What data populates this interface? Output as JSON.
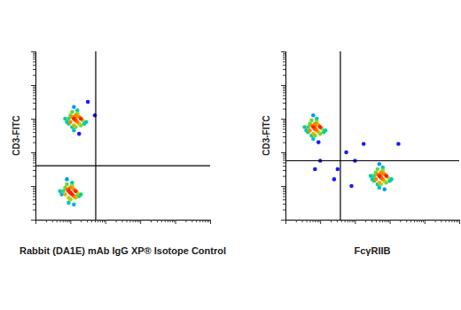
{
  "chart_data": [
    {
      "type": "scatter",
      "x_label": "Rabbit (DA1E) mAb IgG XP® Isotope Control",
      "y_label": "CD3-FITC",
      "xlim": [
        0,
        100
      ],
      "ylim": [
        0,
        100
      ],
      "xticks": [
        0,
        6,
        9.5,
        12,
        14,
        15.6,
        16.9,
        18.1,
        19.1,
        20,
        26,
        29.5,
        32,
        34,
        35.6,
        36.9,
        38.1,
        39.1,
        40,
        46,
        49.5,
        52,
        54,
        55.6,
        56.9,
        58.1,
        59.1,
        60,
        66,
        69.5,
        72,
        74,
        75.6,
        76.9,
        78.1,
        79.1,
        80,
        86,
        89.5,
        92,
        94,
        95.6,
        96.9,
        98.1,
        99.1,
        100
      ],
      "yticks": [
        0,
        6,
        9.5,
        12,
        14,
        15.6,
        16.9,
        18.1,
        19.1,
        20,
        26,
        29.5,
        32,
        34,
        35.6,
        36.9,
        38.1,
        39.1,
        40,
        46,
        49.5,
        52,
        54,
        55.6,
        56.9,
        58.1,
        59.1,
        60,
        66,
        69.5,
        72,
        74,
        75.6,
        76.9,
        78.1,
        79.1,
        80,
        86,
        89.5,
        92,
        94,
        95.6,
        96.9,
        98.1,
        99.1,
        100
      ],
      "tick_labels": false,
      "quadrant": {
        "x": 34.5,
        "y": 32
      },
      "series": [
        {
          "color": "#1a1aff",
          "x": [
            23,
            22,
            24,
            21,
            25,
            23,
            20,
            26,
            22,
            24,
            19,
            27,
            23,
            21,
            25,
            18,
            28,
            22,
            24,
            20,
            26,
            23,
            17,
            29,
            22,
            25,
            21,
            24,
            23,
            19,
            30,
            34,
            20,
            19,
            21,
            18,
            22,
            20,
            17,
            23,
            19,
            21,
            16,
            24,
            20,
            18,
            22,
            15,
            25,
            19,
            21,
            17,
            23,
            20,
            14,
            26,
            18,
            22,
            20,
            21,
            19,
            24
          ],
          "y": [
            59,
            60,
            58,
            61,
            57,
            62,
            58,
            60,
            56,
            63,
            60,
            59,
            55,
            64,
            61,
            58,
            57,
            53,
            65,
            62,
            56,
            59,
            60,
            58,
            67,
            51,
            55,
            63,
            61,
            57,
            70,
            62,
            16,
            17,
            15,
            18,
            14,
            19,
            15,
            17,
            13,
            20,
            17,
            16,
            12,
            21,
            18,
            15,
            14,
            10,
            22,
            19,
            13,
            16,
            17,
            15,
            24,
            9,
            12,
            20,
            18,
            14
          ]
        }
      ]
    },
    {
      "type": "scatter",
      "x_label": "FcγRIIB",
      "y_label": "CD3-FITC",
      "xlim": [
        0,
        100
      ],
      "ylim": [
        0,
        100
      ],
      "xticks": [
        0,
        6,
        9.5,
        12,
        14,
        15.6,
        16.9,
        18.1,
        19.1,
        20,
        26,
        29.5,
        32,
        34,
        35.6,
        36.9,
        38.1,
        39.1,
        40,
        46,
        49.5,
        52,
        54,
        55.6,
        56.9,
        58.1,
        59.1,
        60,
        66,
        69.5,
        72,
        74,
        75.6,
        76.9,
        78.1,
        79.1,
        80,
        86,
        89.5,
        92,
        94,
        95.6,
        96.9,
        98.1,
        99.1,
        100
      ],
      "yticks": [
        0,
        6,
        9.5,
        12,
        14,
        15.6,
        16.9,
        18.1,
        19.1,
        20,
        26,
        29.5,
        32,
        34,
        35.6,
        36.9,
        38.1,
        39.1,
        40,
        46,
        49.5,
        52,
        54,
        55.6,
        56.9,
        58.1,
        59.1,
        60,
        66,
        69.5,
        72,
        74,
        75.6,
        76.9,
        78.1,
        79.1,
        80,
        86,
        89.5,
        92,
        94,
        95.6,
        96.9,
        98.1,
        99.1,
        100
      ],
      "tick_labels": false,
      "quadrant": {
        "x": 31.6,
        "y": 35
      },
      "series": [
        {
          "color": "#1a1aff",
          "x": [
            17,
            16,
            18,
            15,
            19,
            17,
            14,
            20,
            16,
            18,
            13,
            21,
            17,
            15,
            19,
            12,
            22,
            16,
            18,
            14,
            20,
            17,
            11,
            23,
            16,
            19,
            15,
            18,
            17,
            13,
            55,
            54,
            56,
            53,
            57,
            55,
            52,
            58,
            54,
            56,
            51,
            59,
            55,
            53,
            57,
            50,
            60,
            54,
            56,
            52,
            58,
            55,
            49,
            61,
            54,
            57,
            53,
            56,
            55,
            51,
            35,
            40,
            30,
            45,
            20,
            17,
            65,
            38,
            28
          ],
          "y": [
            54,
            55,
            53,
            56,
            52,
            57,
            53,
            55,
            51,
            58,
            55,
            54,
            50,
            59,
            56,
            53,
            52,
            48,
            60,
            57,
            51,
            54,
            55,
            53,
            62,
            46,
            50,
            58,
            56,
            52,
            25,
            26,
            24,
            27,
            23,
            28,
            24,
            26,
            22,
            29,
            26,
            25,
            21,
            30,
            27,
            24,
            23,
            19,
            31,
            28,
            22,
            25,
            26,
            24,
            33,
            18,
            21,
            29,
            27,
            23,
            40,
            35,
            30,
            45,
            35,
            30,
            45,
            20,
            24
          ]
        }
      ]
    }
  ]
}
